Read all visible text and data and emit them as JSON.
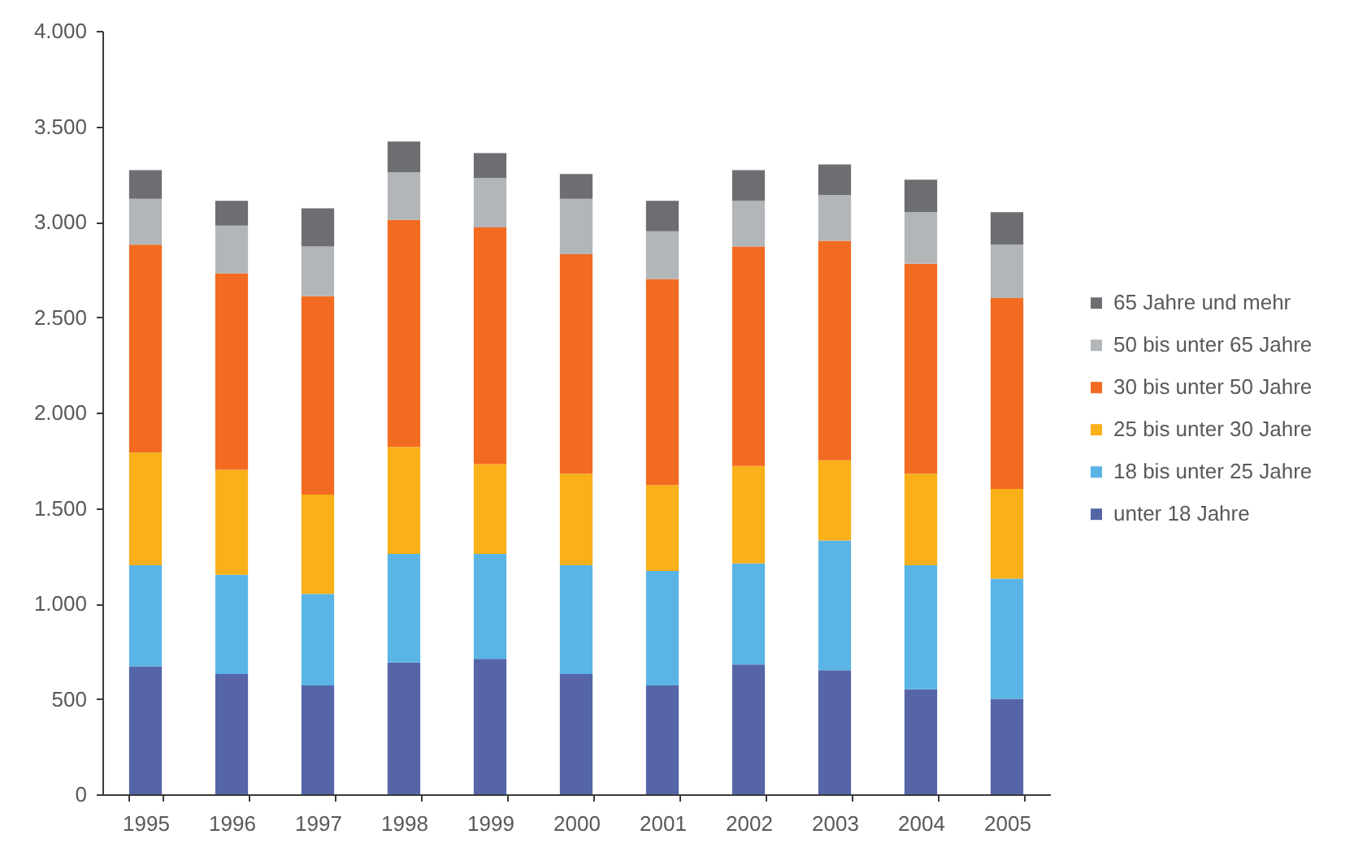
{
  "chart_data": {
    "type": "bar",
    "stacked": true,
    "legend": "right",
    "grid": false,
    "categories": [
      "1995",
      "1996",
      "1997",
      "1998",
      "1999",
      "2000",
      "2001",
      "2002",
      "2003",
      "2004",
      "2005"
    ],
    "series": [
      {
        "name": "unter 18 Jahre",
        "color": "#5565a8",
        "values": [
          670,
          630,
          570,
          690,
          710,
          630,
          570,
          680,
          650,
          550,
          500
        ]
      },
      {
        "name": "18 bis unter 25 Jahre",
        "color": "#5ab4e6",
        "values": [
          530,
          520,
          480,
          570,
          550,
          570,
          600,
          530,
          680,
          650,
          630
        ]
      },
      {
        "name": "25 bis unter 30 Jahre",
        "color": "#f9b019",
        "values": [
          590,
          550,
          520,
          560,
          470,
          480,
          450,
          510,
          420,
          480,
          470
        ]
      },
      {
        "name": "30 bis unter 50 Jahre",
        "color": "#f26b21",
        "values": [
          1090,
          1030,
          1040,
          1190,
          1240,
          1150,
          1080,
          1150,
          1150,
          1100,
          1000
        ]
      },
      {
        "name": "50 bis unter 65 Jahre",
        "color": "#b3b6b9",
        "values": [
          240,
          250,
          260,
          250,
          260,
          290,
          250,
          240,
          240,
          270,
          280
        ]
      },
      {
        "name": "65 Jahre und mehr",
        "color": "#6d6e71",
        "values": [
          150,
          130,
          200,
          160,
          130,
          130,
          160,
          160,
          160,
          170,
          170
        ]
      }
    ],
    "ylim": [
      0,
      4000
    ],
    "yticks": [
      0,
      500,
      {
        "value": 1000,
        "label": "1.000"
      },
      {
        "value": 1500,
        "label": "1.500"
      },
      {
        "value": 2000,
        "label": "2.000"
      },
      {
        "value": 2500,
        "label": "2.500"
      },
      {
        "value": 3000,
        "label": "3.000"
      },
      {
        "value": 3500,
        "label": "3.500"
      },
      {
        "value": 4000,
        "label": "4.000"
      }
    ]
  }
}
